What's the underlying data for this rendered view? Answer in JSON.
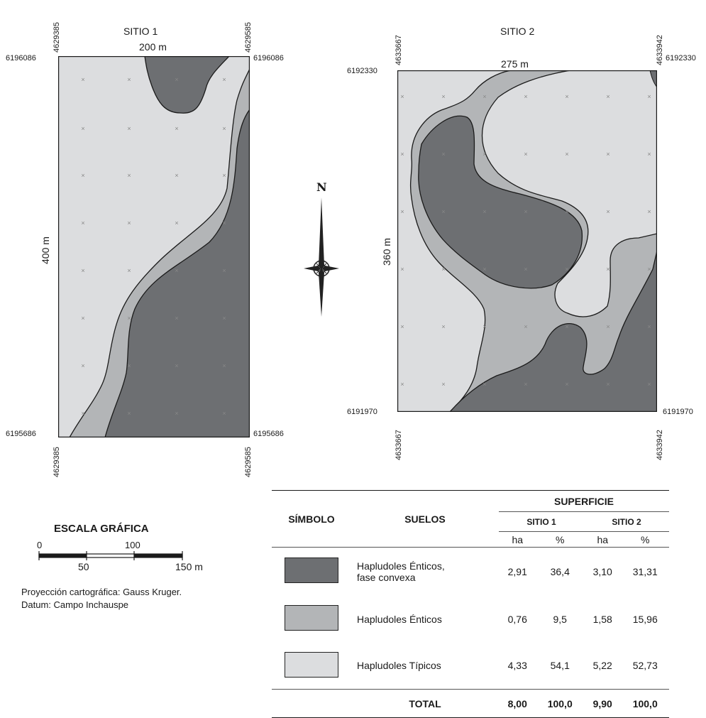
{
  "site1": {
    "title": "SITIO 1",
    "width_label": "200 m",
    "height_label": "400 m",
    "north_y": "6196086",
    "south_y": "6195686",
    "west_x": "4629385",
    "east_x": "4629585"
  },
  "site2": {
    "title": "SITIO 2",
    "width_label": "275 m",
    "height_label": "360 m",
    "north_y": "6192330",
    "south_y": "6191970",
    "west_x": "4633667",
    "east_x": "4633942"
  },
  "north_arrow": {
    "label": "N"
  },
  "scale": {
    "title": "ESCALA GRÁFICA",
    "ticks_top": [
      "0",
      "100"
    ],
    "ticks_bottom": [
      "50",
      "150 m"
    ]
  },
  "projection": {
    "line1": "Proyección cartográfica: Gauss Kruger.",
    "line2": "Datum: Campo Inchauspe"
  },
  "legend": {
    "header_symbol": "SÍMBOLO",
    "header_soils": "SUELOS",
    "header_area": "SUPERFICIE",
    "sub_site1": "SITIO 1",
    "sub_site2": "SITIO 2",
    "unit_ha": "ha",
    "unit_pct": "%",
    "rows": [
      {
        "color": "#6d6f72",
        "soil_line1": "Hapludoles Énticos,",
        "soil_line2": "fase convexa",
        "s1_ha": "2,91",
        "s1_pct": "36,4",
        "s2_ha": "3,10",
        "s2_pct": "31,31"
      },
      {
        "color": "#b3b5b7",
        "soil_line1": "Hapludoles  Énticos",
        "soil_line2": "",
        "s1_ha": "0,76",
        "s1_pct": "9,5",
        "s2_ha": "1,58",
        "s2_pct": "15,96"
      },
      {
        "color": "#dcdddf",
        "soil_line1": "Hapludoles Típicos",
        "soil_line2": "",
        "s1_ha": "4,33",
        "s1_pct": "54,1",
        "s2_ha": "5,22",
        "s2_pct": "52,73"
      }
    ],
    "total": {
      "label": "TOTAL",
      "s1_ha": "8,00",
      "s1_pct": "100,0",
      "s2_ha": "9,90",
      "s2_pct": "100,0"
    }
  },
  "colors": {
    "dark": "#6d6f72",
    "medium": "#b3b5b7",
    "light": "#dcdddf",
    "line": "#1a1a1a"
  }
}
